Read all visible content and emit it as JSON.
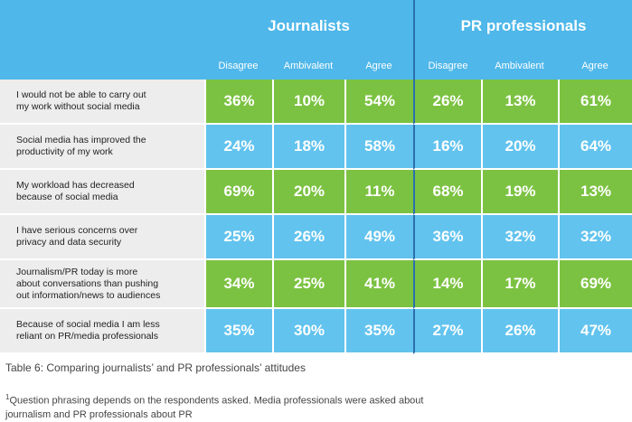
{
  "chart_data": {
    "type": "table",
    "groups": [
      "Journalists",
      "PR professionals"
    ],
    "columns": [
      "Disagree",
      "Ambivalent",
      "Agree"
    ],
    "rows": [
      {
        "question": [
          "I would not be able to carry out",
          "my work without social media"
        ],
        "journalists": [
          "36%",
          "10%",
          "54%"
        ],
        "pr": [
          "26%",
          "13%",
          "61%"
        ]
      },
      {
        "question": [
          "Social media has improved the",
          "productivity of my work"
        ],
        "journalists": [
          "24%",
          "18%",
          "58%"
        ],
        "pr": [
          "16%",
          "20%",
          "64%"
        ]
      },
      {
        "question": [
          "My workload has decreased",
          "because of social media"
        ],
        "journalists": [
          "69%",
          "20%",
          "11%"
        ],
        "pr": [
          "68%",
          "19%",
          "13%"
        ]
      },
      {
        "question": [
          "I have serious concerns over",
          "privacy and data security"
        ],
        "journalists": [
          "25%",
          "26%",
          "49%"
        ],
        "pr": [
          "36%",
          "32%",
          "32%"
        ]
      },
      {
        "question": [
          "Journalism/PR  today is more",
          "about conversations than pushing",
          "out information/news to audiences"
        ],
        "journalists": [
          "34%",
          "25%",
          "41%"
        ],
        "pr": [
          "14%",
          "17%",
          "69%"
        ]
      },
      {
        "question": [
          "Because of social media I am less",
          "reliant on PR/media professionals"
        ],
        "journalists": [
          "35%",
          "30%",
          "35%"
        ],
        "pr": [
          "27%",
          "26%",
          "47%"
        ]
      }
    ],
    "row_colors": [
      "#7CC242",
      "#62C3EE"
    ],
    "header_color": "#4FB7E9",
    "question_bg": "#EDEDED"
  },
  "caption": "Table 6: Comparing journalists’ and PR professionals’ attitudes",
  "footnote": {
    "marker": "1",
    "text": "Question phrasing depends on the respondents asked. Media professionals were asked about journalism and PR professionals about PR"
  }
}
